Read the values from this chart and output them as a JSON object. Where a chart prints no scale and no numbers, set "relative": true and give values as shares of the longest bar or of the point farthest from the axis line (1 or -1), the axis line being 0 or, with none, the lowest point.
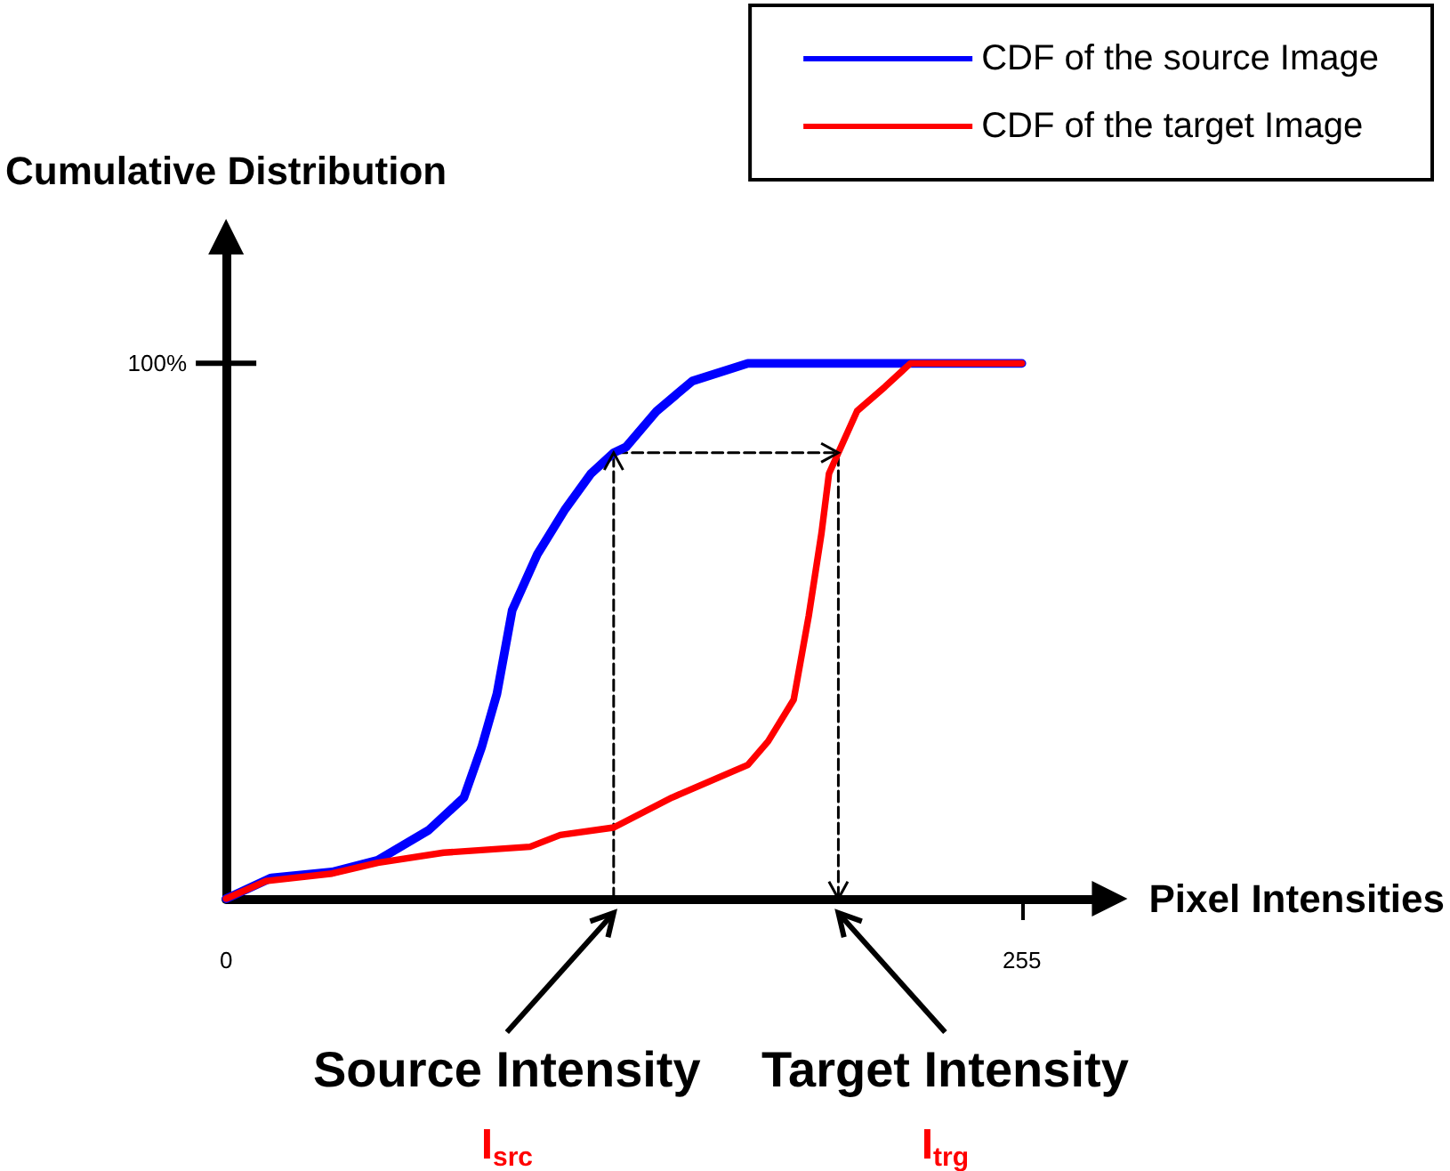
{
  "chart_data": {
    "type": "line",
    "relative": true,
    "xlabel": "Pixel Intensities",
    "ylabel": "Cumulative Distribution",
    "x": [
      0,
      14.5,
      34,
      48.6,
      64.9,
      76.2,
      81.9,
      86.8,
      91.7,
      99.8,
      108.7,
      116.9,
      124.2,
      128.2,
      138,
      149.4,
      167.2,
      255
    ],
    "series": [
      {
        "name": "CDF of the source Image",
        "color": "#0000ff",
        "values": [
          0,
          0.039,
          0.05,
          0.072,
          0.128,
          0.189,
          0.283,
          0.383,
          0.539,
          0.644,
          0.728,
          0.794,
          0.833,
          0.844,
          0.911,
          0.967,
          1,
          1
        ]
      },
      {
        "name": "CDF of the target Image",
        "color": "#ff0000",
        "x": [
          0,
          12.8,
          34,
          48.6,
          69.7,
          97.4,
          107.1,
          124.2,
          142.9,
          167.2,
          173.7,
          181.9,
          186.7,
          190.8,
          193.2,
          196.2,
          202.2,
          211.1,
          219.3,
          255
        ],
        "values": [
          0,
          0.033,
          0.047,
          0.067,
          0.086,
          0.097,
          0.119,
          0.133,
          0.189,
          0.25,
          0.294,
          0.372,
          0.528,
          0.683,
          0.794,
          0.833,
          0.911,
          0.956,
          1,
          1
        ]
      },
      {
        "color": "#000000",
        "line_style": "dashed",
        "x": [
          124.2,
          124.2,
          196.2,
          196.2
        ],
        "values": [
          0,
          0.833,
          0.833,
          0
        ]
      }
    ],
    "xlim": [
      0,
      282
    ],
    "xticks": [
      0,
      255
    ],
    "grid": false,
    "legend": "top right",
    "marker": "none",
    "line_style": "solid",
    "annotations": [
      "100%",
      {
        "text": "Source Intensity",
        "x": 124.2,
        "y": 0
      },
      "I$_{src}$",
      {
        "text": "Target Intensity",
        "x": 196.2,
        "y": 0
      },
      "I$_{trg}$"
    ]
  }
}
